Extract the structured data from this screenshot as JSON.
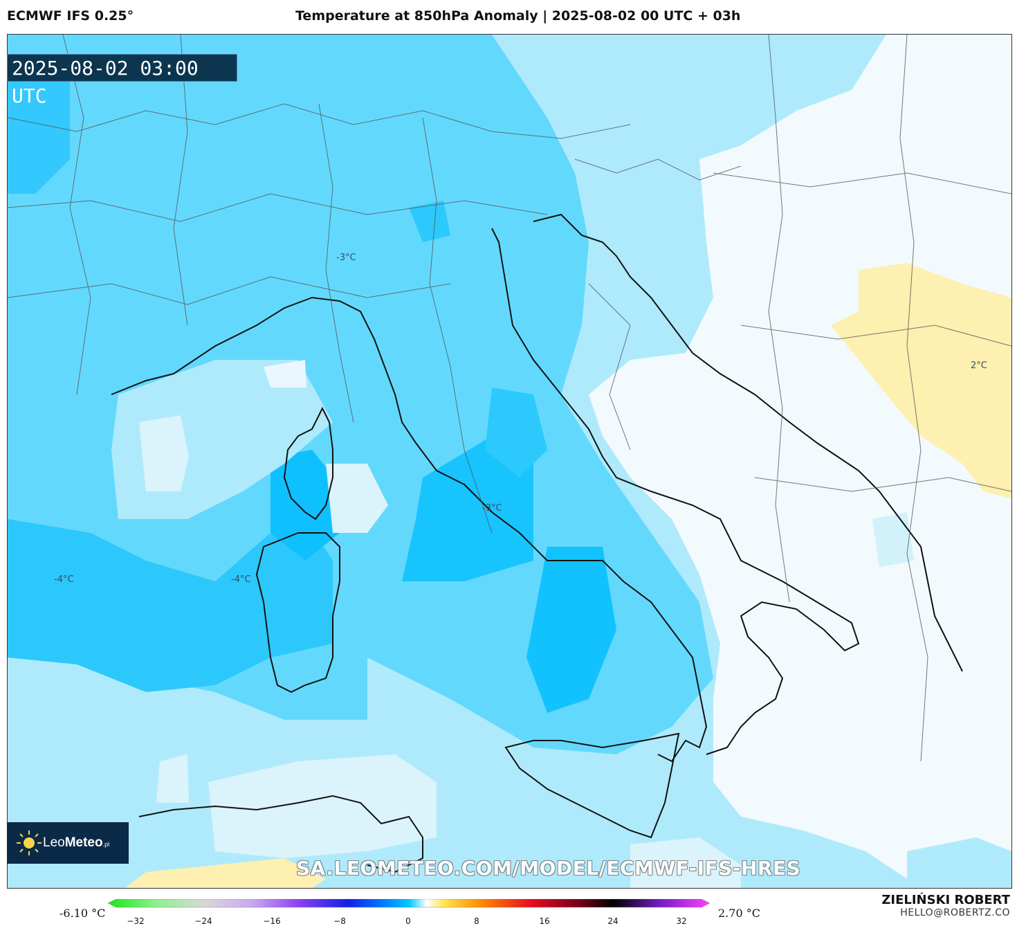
{
  "header": {
    "model": "ECMWF IFS 0.25°",
    "title": "Temperature at 850hPa Anomaly | 2025-08-02 00 UTC + 03h"
  },
  "map": {
    "timestamp": "2025-08-02 03:00 UTC",
    "watermark": "SA.LEOMETEO.COM/MODEL/ECMWF-IFS-HRES",
    "contour_labels": [
      "-3°C",
      "-3°C",
      "-4°C",
      "-4°C",
      "2°C"
    ],
    "colors": {
      "deep": "#00bfff",
      "mid": "#63d8fd",
      "light": "#aeeafc",
      "pale": "#dbf3fb",
      "near_zero": "#f2fafe",
      "warm": "#fdf0b0",
      "warm_strong": "#fde58a"
    }
  },
  "logo": {
    "brand_light": "Leo",
    "brand_bold": "Meteo",
    "suffix": ".pl"
  },
  "author": {
    "name": "ZIELIŃSKI ROBERT",
    "email": "HELLO@ROBERTZ.CO"
  },
  "legend": {
    "min_label": "-6.10 °C",
    "max_label": "2.70 °C",
    "ticks": [
      "−32",
      "−24",
      "−16",
      "−8",
      "0",
      "8",
      "16",
      "24",
      "32"
    ]
  }
}
